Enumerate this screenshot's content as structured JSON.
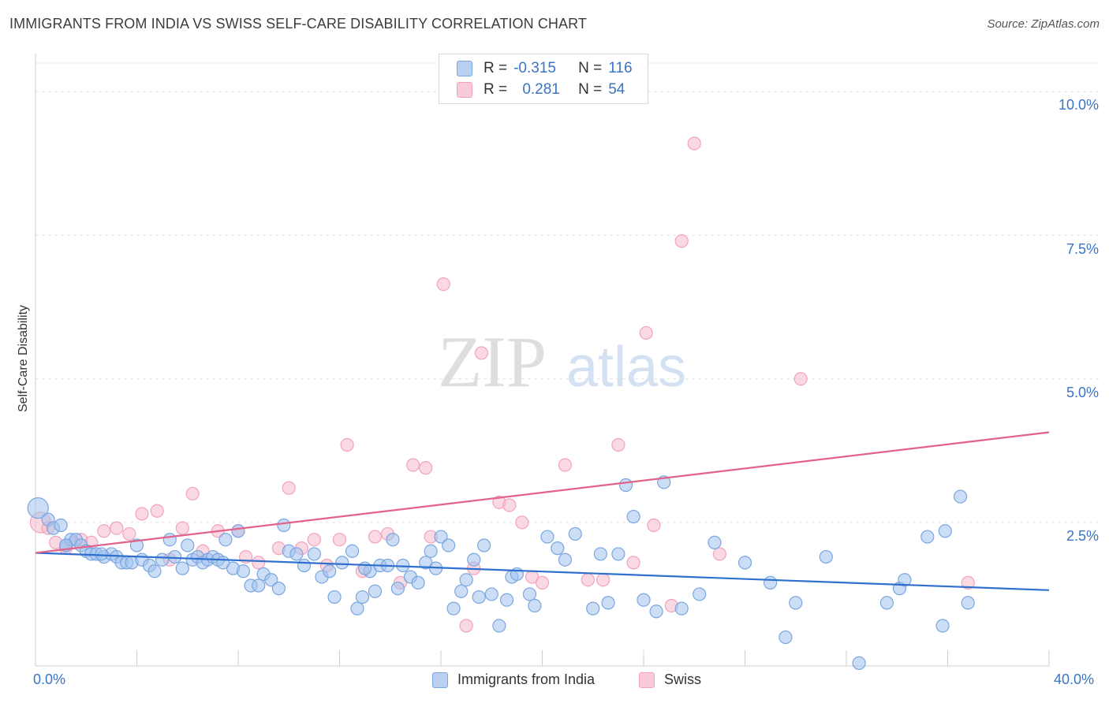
{
  "header": {
    "title": "IMMIGRANTS FROM INDIA VS SWISS SELF-CARE DISABILITY CORRELATION CHART",
    "source": "Source: ZipAtlas.com"
  },
  "watermark": {
    "zip": "ZIP",
    "atlas": "atlas"
  },
  "legend_stats": {
    "india": {
      "r_label": "R =",
      "r_value": "-0.315",
      "n_label": "N =",
      "n_value": "116"
    },
    "swiss": {
      "r_label": "R =",
      "r_value": "0.281",
      "n_label": "N =",
      "n_value": "54"
    }
  },
  "chart_data": {
    "type": "scatter",
    "title": "IMMIGRANTS FROM INDIA VS SWISS SELF-CARE DISABILITY CORRELATION CHART",
    "xlabel": "",
    "ylabel": "Self-Care Disability",
    "xlim": [
      0,
      40
    ],
    "ylim": [
      0,
      10.5
    ],
    "x_tick_labels": [
      "0.0%",
      "40.0%"
    ],
    "y_ticks": [
      2.5,
      5.0,
      7.5,
      10.0
    ],
    "y_tick_labels": [
      "2.5%",
      "5.0%",
      "7.5%",
      "10.0%"
    ],
    "grid": "horizontal dashed",
    "legend_position": "bottom-center",
    "colors": {
      "india": "#7aa6e0",
      "swiss": "#f2a3bb",
      "india_line": "#2f6fcd",
      "swiss_line": "#e2628a"
    },
    "series": [
      {
        "name": "Immigrants from India",
        "key": "india",
        "trend": [
          [
            0,
            1.97
          ],
          [
            40,
            1.32
          ]
        ],
        "points": [
          [
            0.1,
            2.75
          ],
          [
            0.5,
            2.55
          ],
          [
            0.7,
            2.4
          ],
          [
            1.0,
            2.45
          ],
          [
            1.2,
            2.1
          ],
          [
            1.4,
            2.2
          ],
          [
            1.6,
            2.2
          ],
          [
            1.8,
            2.1
          ],
          [
            2.0,
            2.0
          ],
          [
            2.2,
            1.95
          ],
          [
            2.4,
            1.95
          ],
          [
            2.7,
            1.9
          ],
          [
            3.0,
            1.95
          ],
          [
            3.2,
            1.9
          ],
          [
            3.4,
            1.8
          ],
          [
            3.6,
            1.8
          ],
          [
            3.8,
            1.8
          ],
          [
            4.0,
            2.1
          ],
          [
            4.2,
            1.85
          ],
          [
            4.5,
            1.75
          ],
          [
            4.7,
            1.65
          ],
          [
            5.0,
            1.85
          ],
          [
            5.3,
            2.2
          ],
          [
            5.5,
            1.9
          ],
          [
            5.8,
            1.7
          ],
          [
            6.0,
            2.1
          ],
          [
            6.2,
            1.85
          ],
          [
            6.4,
            1.9
          ],
          [
            6.6,
            1.8
          ],
          [
            6.8,
            1.85
          ],
          [
            7.0,
            1.9
          ],
          [
            7.2,
            1.85
          ],
          [
            7.5,
            2.2
          ],
          [
            7.8,
            1.7
          ],
          [
            8.0,
            2.35
          ],
          [
            8.2,
            1.65
          ],
          [
            8.5,
            1.4
          ],
          [
            8.8,
            1.4
          ],
          [
            9.0,
            1.6
          ],
          [
            9.3,
            1.5
          ],
          [
            9.6,
            1.35
          ],
          [
            9.8,
            2.45
          ],
          [
            10.0,
            2.0
          ],
          [
            10.3,
            1.95
          ],
          [
            10.6,
            1.75
          ],
          [
            11.0,
            1.95
          ],
          [
            11.3,
            1.55
          ],
          [
            11.6,
            1.65
          ],
          [
            11.8,
            1.2
          ],
          [
            12.1,
            1.8
          ],
          [
            12.5,
            2.0
          ],
          [
            12.7,
            1.0
          ],
          [
            12.9,
            1.2
          ],
          [
            13.2,
            1.65
          ],
          [
            13.4,
            1.3
          ],
          [
            13.6,
            1.75
          ],
          [
            13.9,
            1.75
          ],
          [
            14.1,
            2.2
          ],
          [
            14.3,
            1.35
          ],
          [
            14.5,
            1.75
          ],
          [
            14.8,
            1.55
          ],
          [
            15.1,
            1.45
          ],
          [
            15.4,
            1.8
          ],
          [
            15.6,
            2.0
          ],
          [
            15.8,
            1.7
          ],
          [
            16.0,
            2.25
          ],
          [
            16.3,
            2.1
          ],
          [
            16.5,
            1.0
          ],
          [
            16.8,
            1.3
          ],
          [
            17.0,
            1.5
          ],
          [
            17.3,
            1.85
          ],
          [
            17.5,
            1.2
          ],
          [
            17.7,
            2.1
          ],
          [
            18.0,
            1.25
          ],
          [
            18.3,
            0.7
          ],
          [
            18.6,
            1.15
          ],
          [
            18.8,
            1.55
          ],
          [
            19.0,
            1.6
          ],
          [
            19.5,
            1.25
          ],
          [
            19.7,
            1.05
          ],
          [
            20.2,
            2.25
          ],
          [
            20.6,
            2.05
          ],
          [
            20.9,
            1.85
          ],
          [
            21.3,
            2.3
          ],
          [
            22.0,
            1.0
          ],
          [
            22.3,
            1.95
          ],
          [
            22.6,
            1.1
          ],
          [
            23.0,
            1.95
          ],
          [
            23.3,
            3.15
          ],
          [
            23.6,
            2.6
          ],
          [
            24.0,
            1.15
          ],
          [
            24.5,
            0.95
          ],
          [
            24.8,
            3.2
          ],
          [
            25.5,
            1.0
          ],
          [
            26.2,
            1.25
          ],
          [
            26.8,
            2.15
          ],
          [
            28.0,
            1.8
          ],
          [
            29.0,
            1.45
          ],
          [
            29.6,
            0.5
          ],
          [
            30.0,
            1.1
          ],
          [
            31.2,
            1.9
          ],
          [
            32.5,
            0.05
          ],
          [
            33.6,
            1.1
          ],
          [
            34.1,
            1.35
          ],
          [
            34.3,
            1.5
          ],
          [
            35.2,
            2.25
          ],
          [
            35.8,
            0.7
          ],
          [
            35.9,
            2.35
          ],
          [
            36.5,
            2.95
          ],
          [
            36.8,
            1.1
          ],
          [
            1.2,
            2.1
          ],
          [
            2.6,
            1.95
          ],
          [
            7.4,
            1.8
          ],
          [
            13.0,
            1.7
          ]
        ]
      },
      {
        "name": "Swiss",
        "key": "swiss",
        "trend": [
          [
            0,
            1.97
          ],
          [
            40,
            4.07
          ]
        ],
        "points": [
          [
            0.2,
            2.5
          ],
          [
            0.5,
            2.4
          ],
          [
            0.8,
            2.15
          ],
          [
            1.2,
            2.05
          ],
          [
            1.5,
            2.15
          ],
          [
            1.8,
            2.2
          ],
          [
            2.2,
            2.15
          ],
          [
            2.7,
            2.35
          ],
          [
            3.2,
            2.4
          ],
          [
            3.7,
            2.3
          ],
          [
            4.2,
            2.65
          ],
          [
            4.8,
            2.7
          ],
          [
            5.3,
            1.85
          ],
          [
            5.8,
            2.4
          ],
          [
            6.2,
            3.0
          ],
          [
            6.6,
            2.0
          ],
          [
            7.2,
            2.35
          ],
          [
            8.0,
            2.35
          ],
          [
            8.3,
            1.9
          ],
          [
            8.8,
            1.8
          ],
          [
            9.6,
            2.05
          ],
          [
            10.0,
            3.1
          ],
          [
            10.5,
            2.05
          ],
          [
            11.0,
            2.2
          ],
          [
            11.5,
            1.75
          ],
          [
            12.0,
            2.2
          ],
          [
            12.3,
            3.85
          ],
          [
            12.9,
            1.65
          ],
          [
            13.4,
            2.25
          ],
          [
            13.9,
            2.3
          ],
          [
            14.4,
            1.45
          ],
          [
            14.9,
            3.5
          ],
          [
            15.4,
            3.45
          ],
          [
            15.6,
            2.25
          ],
          [
            16.1,
            6.65
          ],
          [
            17.0,
            0.7
          ],
          [
            17.3,
            1.7
          ],
          [
            17.6,
            5.45
          ],
          [
            18.3,
            2.85
          ],
          [
            18.7,
            2.8
          ],
          [
            19.2,
            2.5
          ],
          [
            19.6,
            1.55
          ],
          [
            20.0,
            1.45
          ],
          [
            20.9,
            3.5
          ],
          [
            21.8,
            1.5
          ],
          [
            22.4,
            1.5
          ],
          [
            23.0,
            3.85
          ],
          [
            23.6,
            1.8
          ],
          [
            24.1,
            5.8
          ],
          [
            24.4,
            2.45
          ],
          [
            25.1,
            1.05
          ],
          [
            25.5,
            7.4
          ],
          [
            26.0,
            9.1
          ],
          [
            27.0,
            1.95
          ],
          [
            30.2,
            5.0
          ],
          [
            36.8,
            1.45
          ]
        ]
      }
    ]
  },
  "legend_bottom": {
    "india": "Immigrants from India",
    "swiss": "Swiss"
  }
}
